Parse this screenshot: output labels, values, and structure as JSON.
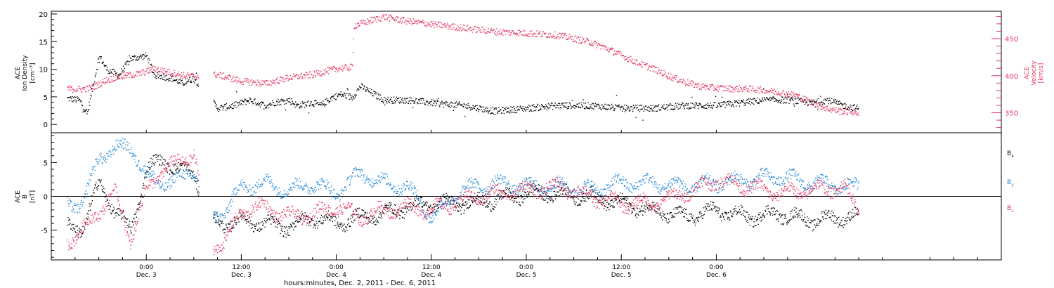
{
  "chart_data": [
    {
      "type": "scatter",
      "panel": "solar-wind",
      "left_axis": {
        "label_lines": [
          "ACE",
          "Ion Density",
          "[cm⁻³]"
        ],
        "ylim": [
          -1.5,
          20.5
        ],
        "ticks": [
          "0",
          "5",
          "10",
          "15",
          "20"
        ],
        "tick_values": [
          0,
          5,
          10,
          15,
          20
        ]
      },
      "right_axis": {
        "label_lines": [
          "ACE",
          "Velocity",
          "[km/s]"
        ],
        "ylim": [
          323,
          487
        ],
        "ticks": [
          "350",
          "400",
          "450"
        ],
        "tick_values": [
          350,
          400,
          450
        ],
        "color": "#e8335f"
      },
      "series": [
        {
          "color": "#000000",
          "axis": "left",
          "x": [
            -10,
            -8.5,
            -7.5,
            -6,
            -5,
            -3.5,
            -2,
            0,
            1,
            3,
            4.5,
            6,
            7,
            9,
            11,
            13,
            15,
            16,
            18,
            19,
            21,
            22,
            23.5,
            24.5,
            26,
            27,
            30,
            33,
            36,
            40,
            44,
            48,
            52,
            56,
            60,
            64,
            68,
            72,
            75,
            78,
            81,
            84,
            86,
            88,
            89,
            90
          ],
          "values": [
            4.8,
            4.5,
            2.0,
            12.5,
            10.0,
            9.0,
            12.0,
            12.5,
            9.0,
            8.5,
            7.5,
            8.5,
            6.5,
            3.0,
            3.5,
            4.5,
            3.5,
            4.0,
            4.5,
            3.5,
            4.0,
            3.5,
            5.0,
            5.5,
            5.0,
            7.0,
            4.5,
            4.5,
            4.0,
            3.5,
            2.5,
            3.0,
            3.5,
            3.5,
            3.0,
            3.0,
            3.5,
            3.5,
            4.0,
            4.5,
            4.5,
            4.0,
            4.5,
            3.5,
            3.2,
            3.0
          ]
        },
        {
          "color": "#e8335f",
          "axis": "right",
          "x": [
            -10,
            -8.5,
            -7,
            -5,
            -3,
            -1,
            1,
            3,
            5,
            7,
            9,
            12,
            15,
            18,
            21,
            24,
            26,
            26.2,
            30,
            33,
            36,
            40,
            44,
            48,
            52,
            56,
            58,
            60,
            62,
            64,
            66,
            68,
            70,
            72,
            74,
            76,
            78,
            80,
            82,
            84,
            86,
            88,
            89,
            90
          ],
          "values": [
            383,
            382,
            384,
            395,
            400,
            403,
            410,
            405,
            400,
            400,
            402,
            393,
            390,
            398,
            402,
            410,
            412,
            468,
            480,
            474,
            470,
            465,
            460,
            458,
            455,
            446,
            438,
            428,
            418,
            410,
            400,
            392,
            386,
            384,
            383,
            383,
            381,
            378,
            374,
            364,
            356,
            352,
            352,
            350
          ]
        }
      ]
    },
    {
      "type": "scatter",
      "panel": "magnetic-field",
      "left_axis": {
        "label_lines": [
          "ACE",
          "B",
          "[nT]"
        ],
        "ylim": [
          -9.4,
          9.4
        ],
        "ticks": [
          "-5",
          "0",
          "5"
        ],
        "tick_values": [
          -5,
          0,
          5
        ]
      },
      "zero_line": true,
      "legend": [
        {
          "name": "B",
          "sub": "x",
          "color": "#000000"
        },
        {
          "name": "B",
          "sub": "y",
          "color": "#1f86d8"
        },
        {
          "name": "B",
          "sub": "z",
          "color": "#e8335f"
        }
      ],
      "series": [
        {
          "name": "Bx",
          "color": "#000000",
          "x": [
            -10,
            -8,
            -6,
            -4,
            -2,
            0,
            2,
            4,
            6,
            8,
            10,
            12,
            15,
            18,
            21,
            24,
            27,
            30,
            33,
            36,
            40,
            44,
            48,
            52,
            56,
            60,
            64,
            68,
            72,
            76,
            80,
            84,
            88,
            90
          ],
          "values": [
            -4.5,
            -4.5,
            2.0,
            -2.0,
            -5.0,
            4.0,
            5.5,
            4.0,
            3.5,
            -3.5,
            -4.0,
            -3.5,
            -4.0,
            -4.5,
            -3.0,
            -4.0,
            -3.0,
            -2.5,
            -1.5,
            -1.0,
            -1.0,
            -0.5,
            0.5,
            0.5,
            0.0,
            -1.0,
            -2.0,
            -3.0,
            -2.0,
            -3.0,
            -2.5,
            -3.5,
            -3.0,
            -3.0
          ]
        },
        {
          "name": "By",
          "color": "#1f86d8",
          "x": [
            -10,
            -8,
            -6,
            -4,
            -2,
            0,
            2,
            4,
            6,
            8,
            10,
            12,
            15,
            18,
            21,
            24,
            27,
            30,
            33,
            36,
            40,
            44,
            48,
            52,
            56,
            60,
            64,
            68,
            72,
            76,
            80,
            84,
            88,
            90
          ],
          "values": [
            -1.0,
            -1.0,
            6.0,
            7.0,
            7.5,
            3.0,
            2.0,
            2.5,
            4.0,
            -3.0,
            -2.0,
            1.5,
            2.0,
            1.0,
            2.0,
            0.5,
            3.5,
            2.0,
            1.5,
            -3.0,
            1.0,
            2.0,
            1.5,
            1.5,
            1.0,
            2.0,
            2.0,
            1.5,
            2.0,
            2.5,
            3.0,
            2.0,
            1.5,
            1.5
          ]
        },
        {
          "name": "Bz",
          "color": "#e8335f",
          "x": [
            -10,
            -8,
            -6,
            -4,
            -2,
            0,
            2,
            4,
            6,
            8,
            10,
            12,
            15,
            18,
            21,
            24,
            27,
            30,
            33,
            36,
            40,
            44,
            48,
            52,
            56,
            60,
            64,
            68,
            72,
            76,
            80,
            84,
            88,
            90
          ],
          "values": [
            -6.5,
            -5.0,
            -2.0,
            0.5,
            -6.5,
            1.0,
            4.0,
            5.0,
            6.5,
            -7.5,
            -6.5,
            -2.0,
            -1.5,
            -3.0,
            -2.5,
            -1.5,
            -3.0,
            -2.0,
            -1.5,
            -2.0,
            -0.5,
            0.5,
            1.0,
            1.5,
            0.0,
            -1.0,
            -1.0,
            0.5,
            2.5,
            1.5,
            0.5,
            1.0,
            1.5,
            -2.0
          ]
        }
      ]
    }
  ],
  "x_axis": {
    "xlim": [
      -12,
      108
    ],
    "ticks": [
      {
        "time": "0:00",
        "date": "Dec. 3"
      },
      {
        "time": "12:00",
        "date": "Dec. 3"
      },
      {
        "time": "0:00",
        "date": "Dec. 4"
      },
      {
        "time": "12:00",
        "date": "Dec. 4"
      },
      {
        "time": "0:00",
        "date": "Dec. 5"
      },
      {
        "time": "12:00",
        "date": "Dec. 5"
      },
      {
        "time": "0:00",
        "date": "Dec. 6"
      }
    ],
    "tick_values": [
      0,
      12,
      24,
      36,
      48,
      60,
      72
    ],
    "xlabel": "hours:minutes, Dec. 2, 2011 - Dec. 6, 2011"
  }
}
